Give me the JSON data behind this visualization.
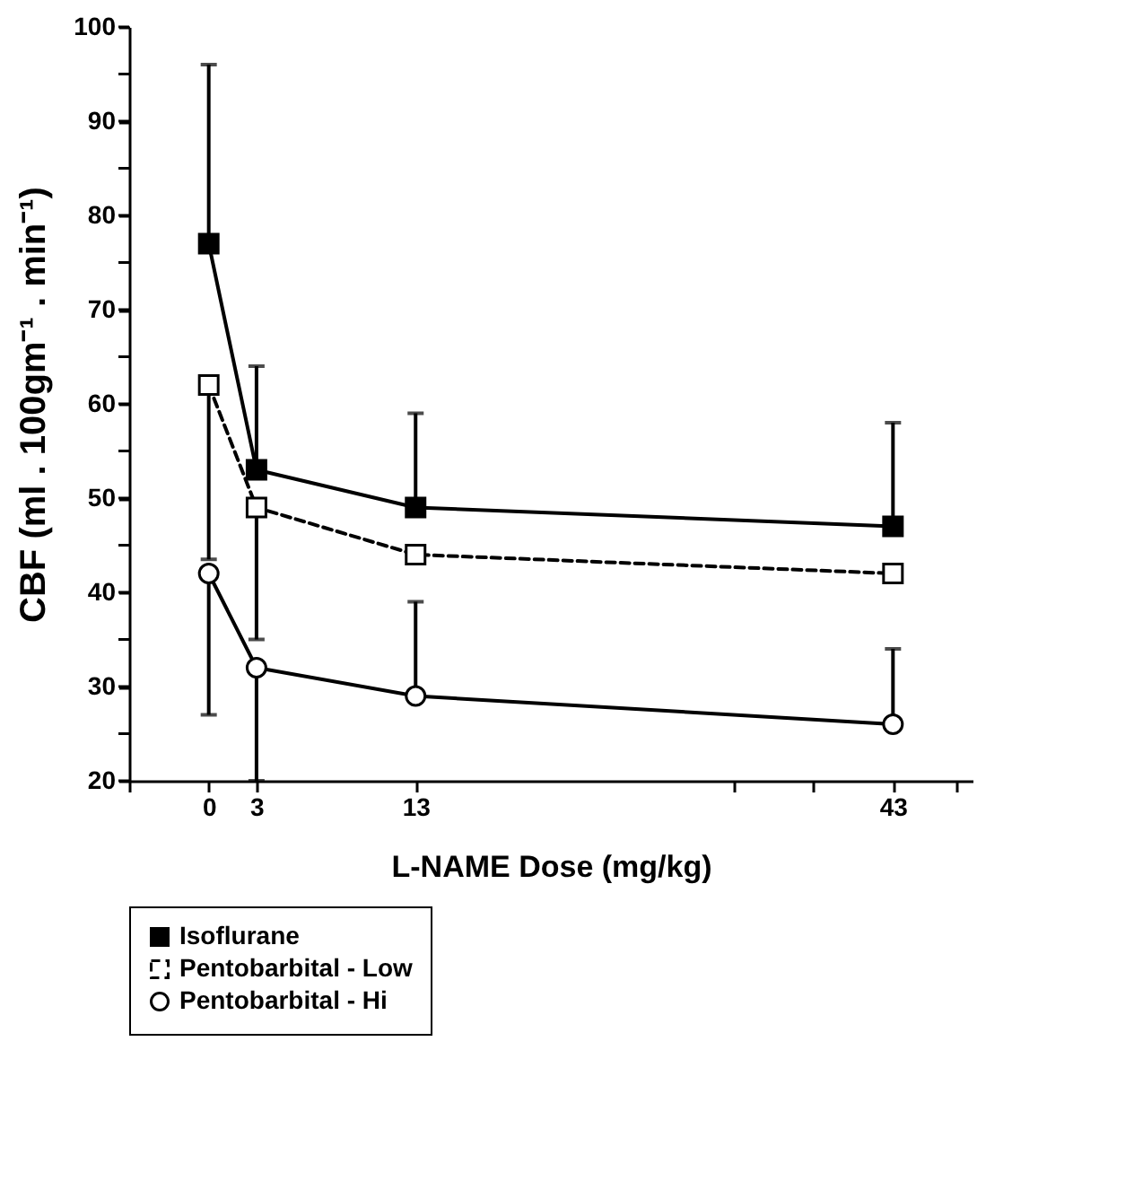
{
  "chart_data": {
    "type": "line",
    "xlabel": "L-NAME Dose (mg/kg)",
    "ylabel": "CBF (ml . 100gm⁻¹ . min⁻¹)",
    "x": [
      0,
      3,
      13,
      43
    ],
    "xlim": [
      -5,
      48
    ],
    "xticks": [
      0,
      3,
      {
        "value": -5,
        "label": null
      },
      {
        "value": 33,
        "label": null
      },
      {
        "value": 38,
        "label": null
      },
      13,
      43,
      {
        "value": 47,
        "label": null
      }
    ],
    "ylim": [
      20,
      100
    ],
    "yticks": [
      20,
      {
        "value": 25,
        "label": null
      },
      30,
      {
        "value": 35,
        "label": null
      },
      40,
      {
        "value": 45,
        "label": null
      },
      50,
      {
        "value": 55,
        "label": null
      },
      60,
      {
        "value": 65,
        "label": null
      },
      70,
      {
        "value": 75,
        "label": null
      },
      80,
      {
        "value": 85,
        "label": null
      },
      90,
      {
        "value": 95,
        "label": null
      },
      100
    ],
    "grid": false,
    "legend": "bottom",
    "series": [
      {
        "name": "Isoflurane",
        "color": "#000000",
        "marker": "square",
        "line_style": "solid",
        "values": [
          77,
          53,
          49,
          47
        ],
        "errors": [
          [
            77,
            96
          ],
          [
            53,
            64
          ],
          [
            49,
            59
          ],
          [
            47,
            58
          ]
        ]
      },
      {
        "name": "Pentobarbital - Low",
        "color": "#000000",
        "marker": "square",
        "line_style": "dashed",
        "values": [
          62,
          49,
          44,
          42
        ],
        "errors": [
          [
            43.5,
            62
          ],
          [
            35,
            49
          ],
          null,
          null
        ]
      },
      {
        "name": "Pentobarbital - Hi",
        "color": "#000000",
        "marker": "circle",
        "line_style": "solid",
        "values": [
          42,
          32,
          29,
          26
        ],
        "errors": [
          [
            27,
            42
          ],
          [
            20,
            32
          ],
          [
            29,
            39
          ],
          [
            26,
            34
          ]
        ]
      }
    ]
  }
}
